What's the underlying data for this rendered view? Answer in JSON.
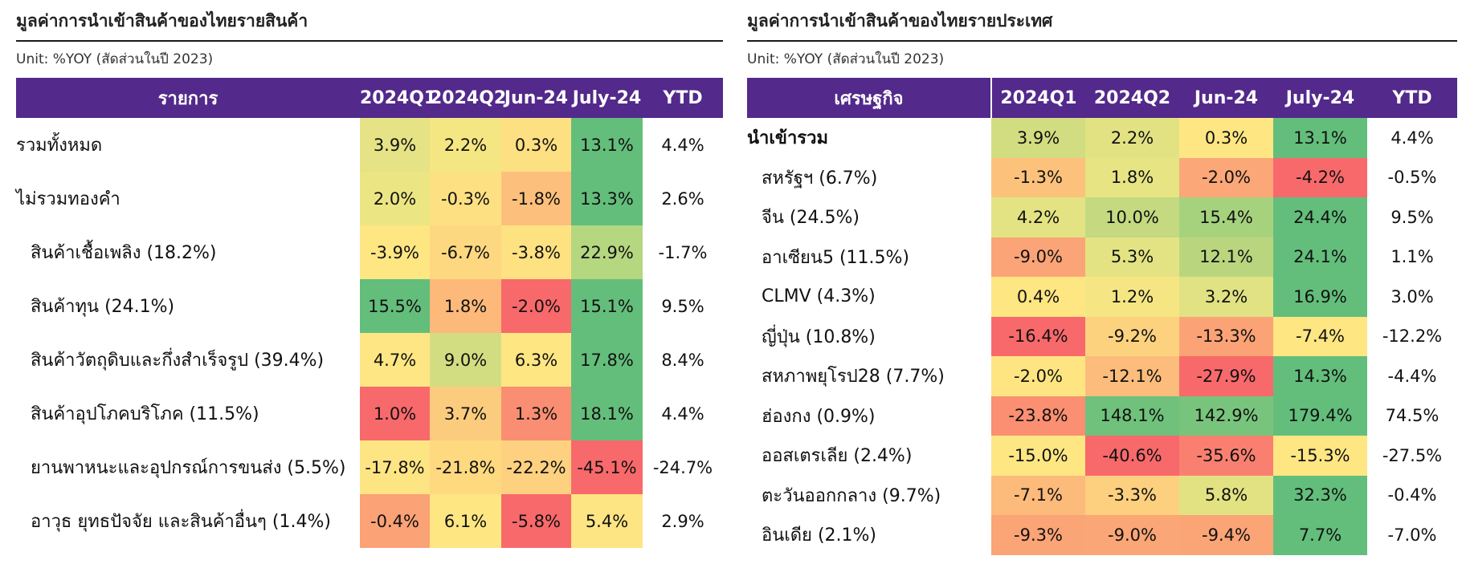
{
  "left": {
    "title": "มูลค่าการนำเข้าสินค้าของไทยรายสินค้า",
    "unit": "Unit: %YOY (สัดส่วนในปี 2023)",
    "headers": [
      "รายการ",
      "2024Q1",
      "2024Q2",
      "Jun-24",
      "July-24",
      "YTD"
    ],
    "rows": [
      {
        "label": "รวมทั้งหมด",
        "indent": false,
        "values": [
          "3.9%",
          "2.2%",
          "0.3%",
          "13.1%",
          "4.4%"
        ],
        "colors": [
          "#e5e385",
          "#f4e682",
          "#fde082",
          "#63be7b",
          "#ffffff"
        ]
      },
      {
        "label": "ไม่รวมทองคำ",
        "indent": false,
        "values": [
          "2.0%",
          "-0.3%",
          "-1.8%",
          "13.3%",
          "2.6%"
        ],
        "colors": [
          "#ece583",
          "#fde082",
          "#fcc07c",
          "#63be7b",
          "#ffffff"
        ]
      },
      {
        "label": "สินค้าเชื้อเพลิง (18.2%)",
        "indent": true,
        "values": [
          "-3.9%",
          "-6.7%",
          "-3.8%",
          "22.9%",
          "-1.7%"
        ],
        "colors": [
          "#fee683",
          "#fed880",
          "#fee282",
          "#b5d780",
          "#ffffff"
        ]
      },
      {
        "label": "สินค้าทุน (24.1%)",
        "indent": true,
        "values": [
          "15.5%",
          "1.8%",
          "-2.0%",
          "15.1%",
          "9.5%"
        ],
        "colors": [
          "#63be7b",
          "#fcb97a",
          "#f8696b",
          "#63be7b",
          "#ffffff"
        ]
      },
      {
        "label": "สินค้าวัตถุดิบและกึ่งสำเร็จรูป (39.4%)",
        "indent": true,
        "values": [
          "4.7%",
          "9.0%",
          "6.3%",
          "17.8%",
          "8.4%"
        ],
        "colors": [
          "#fde683",
          "#d2dd81",
          "#fee683",
          "#63be7b",
          "#ffffff"
        ]
      },
      {
        "label": "สินค้าอุปโภคบริโภค (11.5%)",
        "indent": true,
        "values": [
          "1.0%",
          "3.7%",
          "1.3%",
          "18.1%",
          "4.4%"
        ],
        "colors": [
          "#f8696b",
          "#fccc7e",
          "#fa8e72",
          "#63be7b",
          "#ffffff"
        ]
      },
      {
        "label": "ยานพาหนะและอุปกรณ์การขนส่ง (5.5%)",
        "indent": true,
        "values": [
          "-17.8%",
          "-21.8%",
          "-22.2%",
          "-45.1%",
          "-24.7%"
        ],
        "colors": [
          "#fee583",
          "#fed980",
          "#fdd17f",
          "#f8696b",
          "#ffffff"
        ]
      },
      {
        "label": "อาวุธ ยุทธปัจจัย และสินค้าอื่นๆ (1.4%)",
        "indent": true,
        "values": [
          "-0.4%",
          "6.1%",
          "-5.8%",
          "5.4%",
          "2.9%"
        ],
        "colors": [
          "#fba276",
          "#fee683",
          "#f8696b",
          "#fee583",
          "#ffffff"
        ]
      }
    ]
  },
  "right": {
    "title": "มูลค่าการนำเข้าสินค้าของไทยรายประเทศ",
    "unit": "Unit: %YOY (สัดส่วนในปี 2023)",
    "headers": [
      "เศรษฐกิจ",
      "2024Q1",
      "2024Q2",
      "Jun-24",
      "July-24",
      "YTD"
    ],
    "rows": [
      {
        "label": "นำเข้ารวม",
        "indent": false,
        "bold": true,
        "values": [
          "3.9%",
          "2.2%",
          "0.3%",
          "13.1%",
          "4.4%"
        ],
        "colors": [
          "#d2dd81",
          "#e2e283",
          "#fee683",
          "#63be7b",
          "#ffffff"
        ]
      },
      {
        "label": "สหรัฐฯ (6.7%)",
        "indent": true,
        "bold": false,
        "values": [
          "-1.3%",
          "1.8%",
          "-2.0%",
          "-4.2%",
          "-0.5%"
        ],
        "colors": [
          "#fcc27c",
          "#e7e483",
          "#fba777",
          "#f8696b",
          "#ffffff"
        ]
      },
      {
        "label": "จีน (24.5%)",
        "indent": true,
        "bold": false,
        "values": [
          "4.2%",
          "10.0%",
          "15.4%",
          "24.4%",
          "9.5%"
        ],
        "colors": [
          "#e4e383",
          "#c4d980",
          "#a6d27e",
          "#63be7b",
          "#ffffff"
        ]
      },
      {
        "label": "อาเซียน5 (11.5%)",
        "indent": true,
        "bold": false,
        "values": [
          "-9.0%",
          "5.3%",
          "12.1%",
          "24.1%",
          "1.1%"
        ],
        "colors": [
          "#fba477",
          "#e4e383",
          "#b9d67f",
          "#63be7b",
          "#ffffff"
        ]
      },
      {
        "label": "CLMV (4.3%)",
        "indent": true,
        "bold": false,
        "values": [
          "0.4%",
          "1.2%",
          "3.2%",
          "16.9%",
          "3.0%"
        ],
        "colors": [
          "#fee683",
          "#f5e683",
          "#e0e283",
          "#63be7b",
          "#ffffff"
        ]
      },
      {
        "label": "ญี่ปุ่น (10.8%)",
        "indent": true,
        "bold": false,
        "values": [
          "-16.4%",
          "-9.2%",
          "-13.3%",
          "-7.4%",
          "-12.2%"
        ],
        "colors": [
          "#f8696b",
          "#fdd27f",
          "#fba376",
          "#fee683",
          "#ffffff"
        ]
      },
      {
        "label": "สหภาพยุโรป28 (7.7%)",
        "indent": true,
        "bold": false,
        "values": [
          "-2.0%",
          "-12.1%",
          "-27.9%",
          "14.3%",
          "-4.4%"
        ],
        "colors": [
          "#fee582",
          "#fcbc7b",
          "#f8696b",
          "#63be7b",
          "#ffffff"
        ]
      },
      {
        "label": "ฮ่องกง (0.9%)",
        "indent": true,
        "bold": false,
        "values": [
          "-23.8%",
          "148.1%",
          "142.9%",
          "179.4%",
          "74.5%"
        ],
        "colors": [
          "#fa8f72",
          "#6fc17b",
          "#79c47c",
          "#63be7b",
          "#ffffff"
        ]
      },
      {
        "label": "ออสเตรเลีย (2.4%)",
        "indent": true,
        "bold": false,
        "values": [
          "-15.0%",
          "-40.6%",
          "-35.6%",
          "-15.3%",
          "-27.5%"
        ],
        "colors": [
          "#fee683",
          "#f8696b",
          "#f98070",
          "#fee683",
          "#ffffff"
        ]
      },
      {
        "label": "ตะวันออกกลาง (9.7%)",
        "indent": true,
        "bold": false,
        "values": [
          "-7.1%",
          "-3.3%",
          "5.8%",
          "32.3%",
          "-0.4%"
        ],
        "colors": [
          "#fcba7b",
          "#fdd07f",
          "#e2e283",
          "#63be7b",
          "#ffffff"
        ]
      },
      {
        "label": "อินเดีย (2.1%)",
        "indent": true,
        "bold": false,
        "values": [
          "-9.3%",
          "-9.0%",
          "-9.4%",
          "7.7%",
          "-7.0%"
        ],
        "colors": [
          "#fba476",
          "#fba676",
          "#fba476",
          "#63be7b",
          "#ffffff"
        ]
      }
    ]
  }
}
